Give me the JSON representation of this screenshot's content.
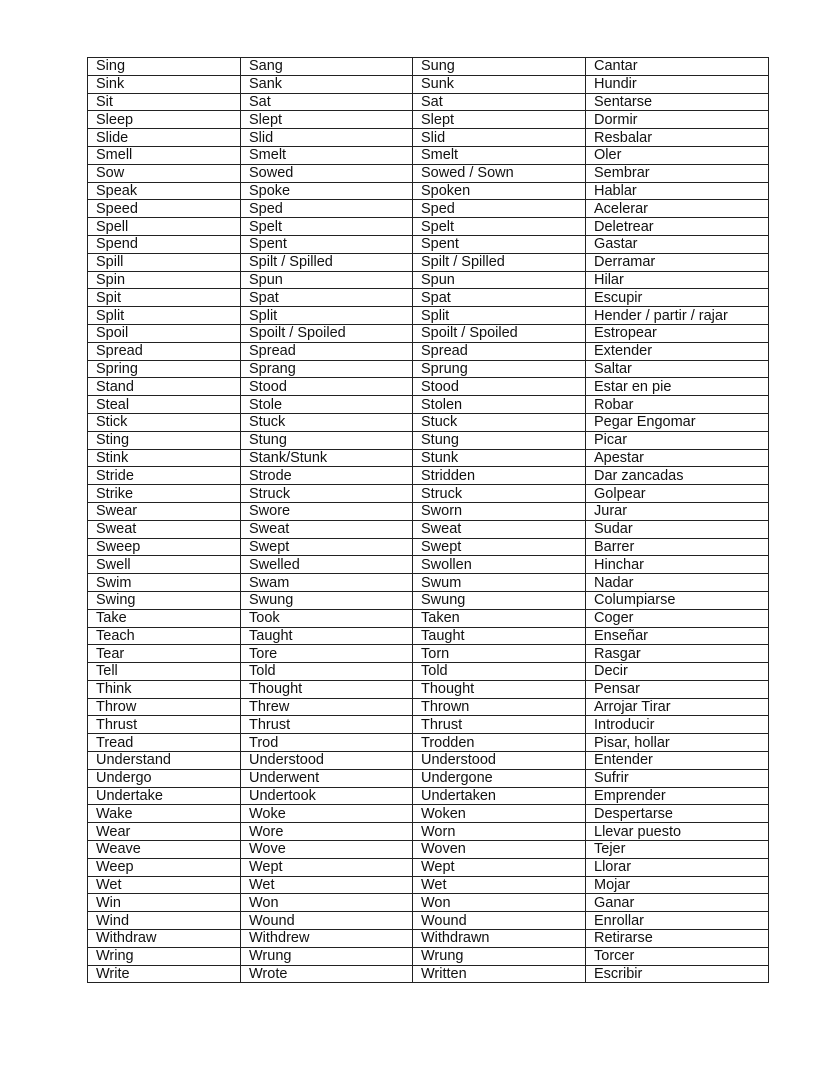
{
  "rows": [
    [
      "Sing",
      "Sang",
      "Sung",
      "Cantar"
    ],
    [
      "Sink",
      "Sank",
      "Sunk",
      "Hundir"
    ],
    [
      "Sit",
      "Sat",
      "Sat",
      "Sentarse"
    ],
    [
      "Sleep",
      "Slept",
      "Slept",
      "Dormir"
    ],
    [
      "Slide",
      "Slid",
      "Slid",
      "Resbalar"
    ],
    [
      "Smell",
      "Smelt",
      "Smelt",
      "Oler"
    ],
    [
      "Sow",
      "Sowed",
      "Sowed / Sown",
      "Sembrar"
    ],
    [
      "Speak",
      "Spoke",
      "Spoken",
      "Hablar"
    ],
    [
      "Speed",
      "Sped",
      "Sped",
      "Acelerar"
    ],
    [
      "Spell",
      "Spelt",
      "Spelt",
      "Deletrear"
    ],
    [
      "Spend",
      "Spent",
      "Spent",
      "Gastar"
    ],
    [
      "Spill",
      "Spilt / Spilled",
      "Spilt / Spilled",
      "Derramar"
    ],
    [
      "Spin",
      "Spun",
      "Spun",
      "Hilar"
    ],
    [
      "Spit",
      "Spat",
      "Spat",
      "Escupir"
    ],
    [
      "Split",
      "Split",
      "Split",
      "Hender / partir / rajar"
    ],
    [
      "Spoil",
      "Spoilt / Spoiled",
      "Spoilt / Spoiled",
      "Estropear"
    ],
    [
      "Spread",
      "Spread",
      "Spread",
      "Extender"
    ],
    [
      "Spring",
      "Sprang",
      "Sprung",
      "Saltar"
    ],
    [
      "Stand",
      "Stood",
      "Stood",
      "Estar en pie"
    ],
    [
      "Steal",
      "Stole",
      "Stolen",
      "Robar"
    ],
    [
      "Stick",
      "Stuck",
      "Stuck",
      "Pegar Engomar"
    ],
    [
      "Sting",
      "Stung",
      "Stung",
      "Picar"
    ],
    [
      "Stink",
      "Stank/Stunk",
      "Stunk",
      "Apestar"
    ],
    [
      "Stride",
      "Strode",
      "Stridden",
      "Dar zancadas"
    ],
    [
      "Strike",
      "Struck",
      "Struck",
      "Golpear"
    ],
    [
      "Swear",
      "Swore",
      "Sworn",
      "Jurar"
    ],
    [
      "Sweat",
      "Sweat",
      "Sweat",
      "Sudar"
    ],
    [
      "Sweep",
      "Swept",
      "Swept",
      "Barrer"
    ],
    [
      "Swell",
      "Swelled",
      "Swollen",
      "Hinchar"
    ],
    [
      "Swim",
      "Swam",
      "Swum",
      "Nadar"
    ],
    [
      "Swing",
      "Swung",
      "Swung",
      "Columpiarse"
    ],
    [
      "Take",
      "Took",
      "Taken",
      "Coger"
    ],
    [
      "Teach",
      "Taught",
      "Taught",
      "Enseñar"
    ],
    [
      "Tear",
      "Tore",
      "Torn",
      "Rasgar"
    ],
    [
      "Tell",
      "Told",
      "Told",
      "Decir"
    ],
    [
      "Think",
      "Thought",
      "Thought",
      "Pensar"
    ],
    [
      "Throw",
      "Threw",
      "Thrown",
      "Arrojar Tirar"
    ],
    [
      "Thrust",
      "Thrust",
      "Thrust",
      "Introducir"
    ],
    [
      "Tread",
      "Trod",
      "Trodden",
      "Pisar, hollar"
    ],
    [
      "Understand",
      "Understood",
      "Understood",
      "Entender"
    ],
    [
      "Undergo",
      "Underwent",
      "Undergone",
      "Sufrir"
    ],
    [
      "Undertake",
      "Undertook",
      "Undertaken",
      "Emprender"
    ],
    [
      "Wake",
      "Woke",
      "Woken",
      "Despertarse"
    ],
    [
      "Wear",
      "Wore",
      "Worn",
      "Llevar puesto"
    ],
    [
      "Weave",
      "Wove",
      "Woven",
      "Tejer"
    ],
    [
      "Weep",
      "Wept",
      "Wept",
      "Llorar"
    ],
    [
      "Wet",
      "Wet",
      "Wet",
      "Mojar"
    ],
    [
      "Win",
      "Won",
      "Won",
      "Ganar"
    ],
    [
      "Wind",
      "Wound",
      "Wound",
      "Enrollar"
    ],
    [
      "Withdraw",
      "Withdrew",
      "Withdrawn",
      "Retirarse"
    ],
    [
      "Wring",
      "Wrung",
      "Wrung",
      "Torcer"
    ],
    [
      "Write",
      "Wrote",
      "Written",
      "Escribir"
    ]
  ]
}
